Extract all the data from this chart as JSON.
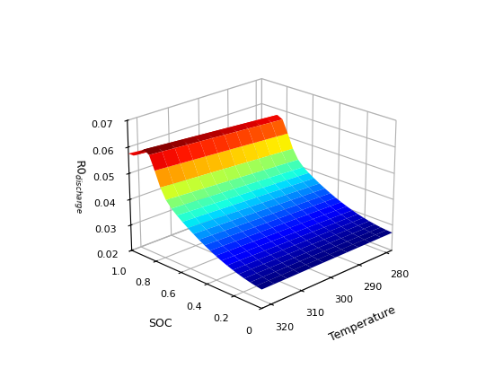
{
  "soc_range": [
    0.0,
    1.0
  ],
  "soc_points": 25,
  "temp_range": [
    278,
    323
  ],
  "temp_points": 12,
  "zlim": [
    0.02,
    0.07
  ],
  "zticks": [
    0.02,
    0.03,
    0.04,
    0.05,
    0.06,
    0.07
  ],
  "xlabel": "SOC",
  "ylabel": "Temperature",
  "zlabel": "R0$_{discharge}$",
  "colormap": "jet",
  "elev": 22,
  "azim": -135,
  "figsize": [
    5.6,
    4.2
  ],
  "dpi": 100,
  "temp_ticks": [
    280,
    290,
    300,
    310,
    320
  ],
  "soc_ticks": [
    0,
    0.2,
    0.4,
    0.6,
    0.8,
    1.0
  ]
}
